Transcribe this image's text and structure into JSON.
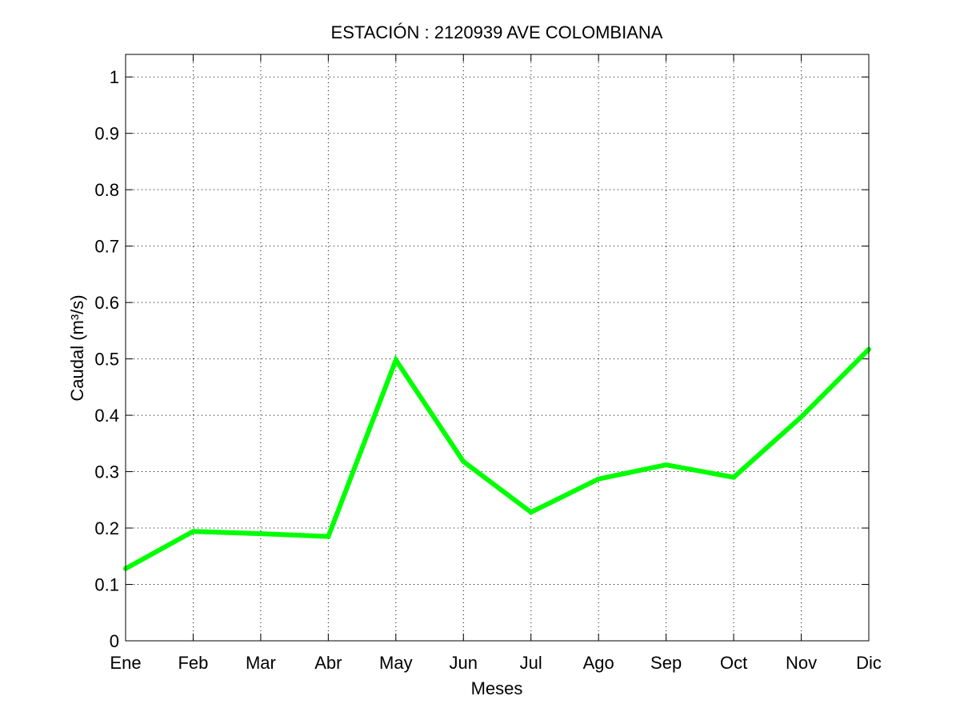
{
  "chart_data": {
    "type": "line",
    "title": "ESTACIÓN :  2120939  AVE COLOMBIANA",
    "xlabel": "Meses",
    "ylabel": "Caudal (m³/s)",
    "categories": [
      "Ene",
      "Feb",
      "Mar",
      "Abr",
      "May",
      "Jun",
      "Jul",
      "Ago",
      "Sep",
      "Oct",
      "Nov",
      "Dic"
    ],
    "ylim": [
      0,
      1.04
    ],
    "yticks": [
      0,
      0.1,
      0.2,
      0.3,
      0.4,
      0.5,
      0.6,
      0.7,
      0.8,
      0.9,
      1
    ],
    "ytick_labels": [
      "0",
      "0.1",
      "0.2",
      "0.3",
      "0.4",
      "0.5",
      "0.6",
      "0.7",
      "0.8",
      "0.9",
      "1"
    ],
    "grid": true,
    "legend": "none",
    "series": [
      {
        "values": [
          0.128,
          0.194,
          0.19,
          0.185,
          0.498,
          0.318,
          0.228,
          0.287,
          0.312,
          0.29,
          0.397,
          0.517
        ],
        "color": "#00ff00"
      }
    ]
  }
}
